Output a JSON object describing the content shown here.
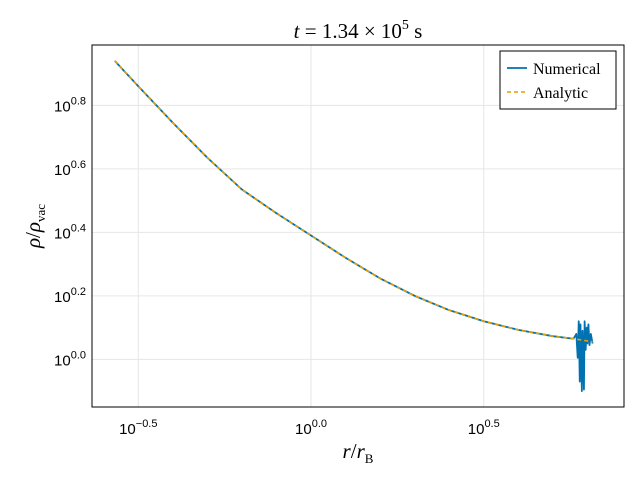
{
  "chart_data": {
    "type": "line",
    "title": {
      "lhs": "t",
      "eq": " = 1.34  ×  10",
      "exp": "5",
      "unit": " s"
    },
    "xlabel": {
      "main": "r",
      "slash": "/",
      "sub_main": "r",
      "sub": "B"
    },
    "ylabel": {
      "main": "ρ",
      "slash": "/",
      "sub_main": "ρ",
      "sub": "vac"
    },
    "x_scale": "log10",
    "y_scale": "log10",
    "xlim_log10": [
      -0.634,
      0.906
    ],
    "ylim_log10": [
      -0.15,
      0.99
    ],
    "x_ticks": [
      {
        "log10": -0.5,
        "base": "10",
        "exp": "−0.5"
      },
      {
        "log10": 0.0,
        "base": "10",
        "exp": "0.0"
      },
      {
        "log10": 0.5,
        "base": "10",
        "exp": "0.5"
      }
    ],
    "y_ticks": [
      {
        "log10": 0.0,
        "base": "10",
        "exp": "0.0"
      },
      {
        "log10": 0.2,
        "base": "10",
        "exp": "0.2"
      },
      {
        "log10": 0.4,
        "base": "10",
        "exp": "0.4"
      },
      {
        "log10": 0.6,
        "base": "10",
        "exp": "0.6"
      },
      {
        "log10": 0.8,
        "base": "10",
        "exp": "0.8"
      }
    ],
    "grid": true,
    "legend_position": "top-right",
    "series": [
      {
        "name": "Numerical",
        "color": "#0072b2",
        "style": "solid",
        "x_log10": [
          -0.568,
          -0.5,
          -0.4,
          -0.3,
          -0.2,
          -0.1,
          0.0,
          0.1,
          0.2,
          0.3,
          0.4,
          0.5,
          0.6,
          0.7,
          0.76,
          0.768,
          0.772,
          0.775,
          0.778,
          0.78,
          0.782,
          0.784,
          0.786,
          0.788,
          0.79,
          0.792,
          0.795,
          0.798,
          0.8,
          0.803,
          0.806,
          0.81,
          0.815
        ],
        "y_log10": [
          0.94,
          0.86,
          0.745,
          0.635,
          0.535,
          0.46,
          0.39,
          0.32,
          0.255,
          0.2,
          0.155,
          0.12,
          0.093,
          0.073,
          0.065,
          0.08,
          0.005,
          0.12,
          -0.07,
          0.11,
          0.02,
          -0.1,
          0.09,
          0.0,
          -0.095,
          0.12,
          0.03,
          0.1,
          0.05,
          0.11,
          0.045,
          0.08,
          0.05
        ]
      },
      {
        "name": "Analytic",
        "color": "#e69f00",
        "style": "dashed",
        "x_log10": [
          -0.568,
          -0.5,
          -0.4,
          -0.3,
          -0.2,
          -0.1,
          0.0,
          0.1,
          0.2,
          0.3,
          0.4,
          0.5,
          0.6,
          0.7,
          0.76,
          0.8,
          0.815
        ],
        "y_log10": [
          0.94,
          0.86,
          0.745,
          0.635,
          0.535,
          0.46,
          0.39,
          0.32,
          0.255,
          0.2,
          0.155,
          0.12,
          0.093,
          0.073,
          0.065,
          0.058,
          0.055
        ]
      }
    ]
  }
}
